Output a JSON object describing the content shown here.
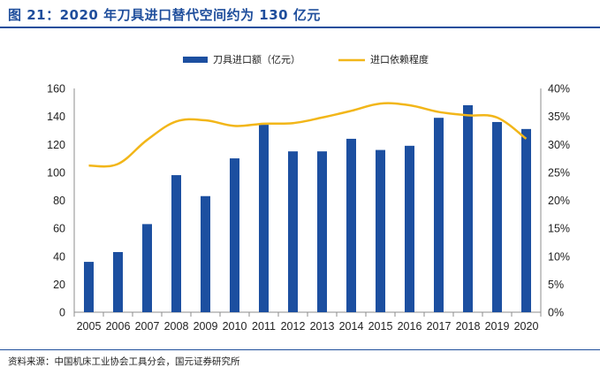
{
  "header": {
    "title": "图 21：2020 年刀具进口替代空间约为 130 亿元"
  },
  "footer": {
    "source": "资料来源：中国机床工业协会工具分会，国元证券研究所"
  },
  "colors": {
    "bar": "#1c4fa0",
    "line": "#f2b619",
    "accent": "#1f4e9c"
  },
  "chart_data": {
    "type": "bar",
    "categories": [
      "2005",
      "2006",
      "2007",
      "2008",
      "2009",
      "2010",
      "2011",
      "2012",
      "2013",
      "2014",
      "2015",
      "2016",
      "2017",
      "2018",
      "2019",
      "2020"
    ],
    "series": [
      {
        "name": "刀具进口额（亿元）",
        "type": "bar",
        "axis": "left",
        "values": [
          36,
          43,
          63,
          98,
          83,
          110,
          134,
          115,
          115,
          124,
          116,
          119,
          139,
          148,
          136,
          131
        ]
      },
      {
        "name": "进口依赖程度",
        "type": "line",
        "axis": "right",
        "values": [
          26.2,
          26.5,
          30.8,
          34.1,
          34.3,
          33.3,
          33.7,
          33.8,
          34.8,
          36.0,
          37.3,
          37.0,
          35.8,
          35.2,
          34.8,
          31.0
        ]
      }
    ],
    "y_left": {
      "lim": [
        0,
        160
      ],
      "ticks": [
        "0",
        "20",
        "40",
        "60",
        "80",
        "100",
        "120",
        "140",
        "160"
      ]
    },
    "y_right": {
      "lim": [
        0,
        40
      ],
      "ticks": [
        "0%",
        "5%",
        "10%",
        "15%",
        "20%",
        "25%",
        "30%",
        "35%",
        "40%"
      ]
    },
    "legend": {
      "placement": "top-center"
    },
    "grid": false
  }
}
